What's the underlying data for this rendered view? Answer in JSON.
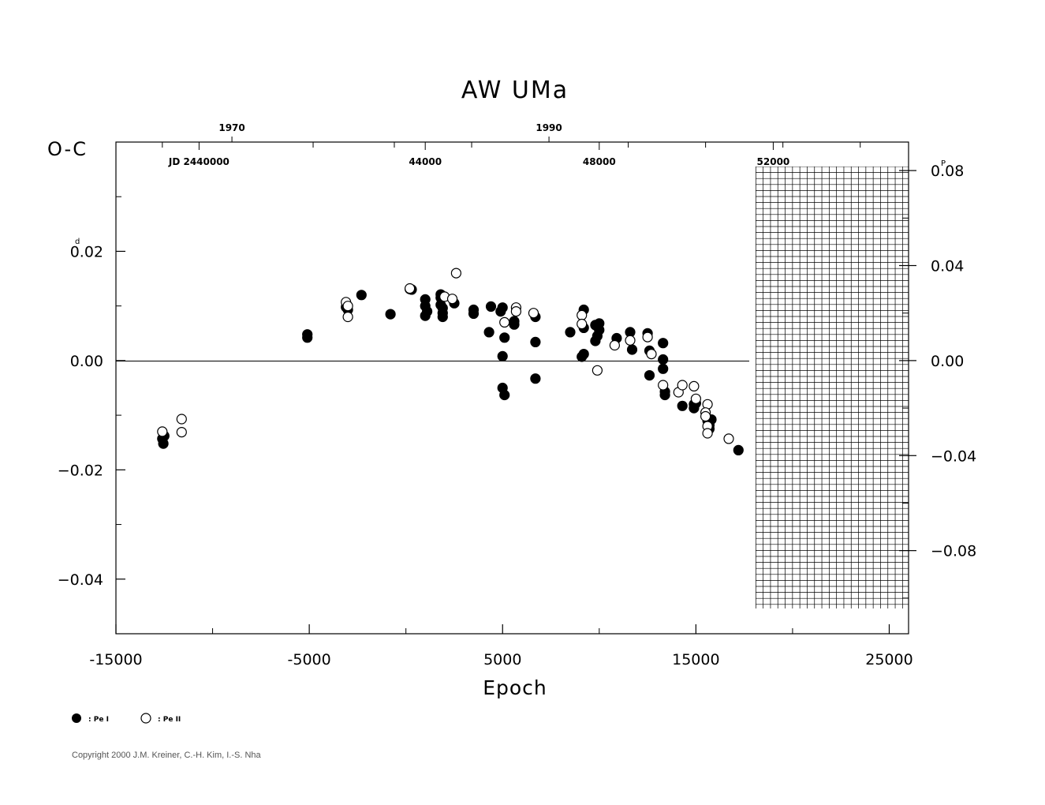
{
  "title": "AW  UMa",
  "copyright": "Copyright 2000 J.M. Kreiner, C.-H. Kim, I.-S. Nha",
  "legend": [
    {
      "marker": "filled-circle",
      "label": ": Pe I"
    },
    {
      "marker": "open-circle",
      "label": ": Pe II"
    }
  ],
  "chart_data": {
    "type": "scatter",
    "title": "AW  UMa",
    "xlabel": "Epoch",
    "ylabel": "O-C",
    "ylabel_unit": "d",
    "y2label_unit": "P",
    "xlim": [
      -15000,
      26000
    ],
    "ylim": [
      -0.05,
      0.04
    ],
    "y2lim": [
      -0.115,
      0.092
    ],
    "x_ticks": [
      "-15000",
      "-5000",
      "5000",
      "15000",
      "25000"
    ],
    "x_tick_values": [
      -15000,
      -5000,
      5000,
      15000,
      25000
    ],
    "y_ticks": [
      {
        "value": 0.02,
        "label": "0.02"
      },
      {
        "value": 0.0,
        "label": "0.00"
      },
      {
        "value": -0.02,
        "label": "−0.02"
      },
      {
        "value": -0.04,
        "label": "−0.04"
      }
    ],
    "y2_ticks": [
      {
        "value": 0.08,
        "label": "0.08"
      },
      {
        "value": 0.04,
        "label": "0.04"
      },
      {
        "value": 0.0,
        "label": "0.00"
      },
      {
        "value": -0.04,
        "label": "−0.04"
      },
      {
        "value": -0.08,
        "label": "−0.08"
      }
    ],
    "top_year_ticks": [
      {
        "epoch": -9000,
        "label": "1970"
      },
      {
        "epoch": 7400,
        "label": "1990"
      }
    ],
    "top_jd_ticks": [
      {
        "epoch": -10700,
        "label": "JD  2440000"
      },
      {
        "epoch": 1000,
        "label": "44000"
      },
      {
        "epoch": 10000,
        "label": "48000"
      },
      {
        "epoch": 19000,
        "label": "52000"
      }
    ],
    "hatched_region_epoch": [
      18100,
      26000
    ],
    "series": [
      {
        "name": "Pe I",
        "marker": "filled",
        "points": [
          [
            -12600,
            -0.0143
          ],
          [
            -12550,
            -0.0152
          ],
          [
            -12500,
            -0.0138
          ],
          [
            -5100,
            0.0042
          ],
          [
            -5100,
            0.0048
          ],
          [
            -3100,
            0.0098
          ],
          [
            -3000,
            0.0093
          ],
          [
            -2300,
            0.012
          ],
          [
            -800,
            0.0085
          ],
          [
            200,
            0.0131
          ],
          [
            300,
            0.013
          ],
          [
            1000,
            0.0112
          ],
          [
            1000,
            0.01
          ],
          [
            1000,
            0.0082
          ],
          [
            1100,
            0.009
          ],
          [
            1800,
            0.0121
          ],
          [
            1800,
            0.0115
          ],
          [
            1800,
            0.0102
          ],
          [
            1900,
            0.0087
          ],
          [
            1900,
            0.008
          ],
          [
            1900,
            0.0096
          ],
          [
            2500,
            0.0105
          ],
          [
            3500,
            0.0093
          ],
          [
            3500,
            0.0086
          ],
          [
            4300,
            0.0052
          ],
          [
            4400,
            0.0099
          ],
          [
            4900,
            0.009
          ],
          [
            5000,
            0.0097
          ],
          [
            5000,
            0.0008
          ],
          [
            5100,
            0.0042
          ],
          [
            5000,
            -0.005
          ],
          [
            5100,
            -0.0063
          ],
          [
            5600,
            0.0072
          ],
          [
            5600,
            0.0066
          ],
          [
            6700,
            0.008
          ],
          [
            6700,
            0.0034
          ],
          [
            6700,
            -0.0033
          ],
          [
            8500,
            0.0052
          ],
          [
            9200,
            0.0093
          ],
          [
            9200,
            0.006
          ],
          [
            9200,
            0.0012
          ],
          [
            9100,
            0.0007
          ],
          [
            9800,
            0.0065
          ],
          [
            9800,
            0.0036
          ],
          [
            9900,
            0.0045
          ],
          [
            10000,
            0.0068
          ],
          [
            10000,
            0.0056
          ],
          [
            10900,
            0.0041
          ],
          [
            11600,
            0.0052
          ],
          [
            11700,
            0.002
          ],
          [
            12500,
            0.005
          ],
          [
            12600,
            0.0018
          ],
          [
            12600,
            -0.0027
          ],
          [
            13300,
            0.0032
          ],
          [
            13300,
            0.0002
          ],
          [
            13300,
            -0.0015
          ],
          [
            13400,
            -0.0057
          ],
          [
            13400,
            -0.0063
          ],
          [
            14300,
            -0.0083
          ],
          [
            14900,
            -0.0087
          ],
          [
            14900,
            -0.008
          ],
          [
            15000,
            -0.0078
          ],
          [
            15600,
            -0.011
          ],
          [
            15700,
            -0.0118
          ],
          [
            15700,
            -0.0125
          ],
          [
            15800,
            -0.0108
          ],
          [
            17200,
            -0.0164
          ]
        ]
      },
      {
        "name": "Pe II",
        "marker": "open",
        "points": [
          [
            -12600,
            -0.013
          ],
          [
            -11600,
            -0.0107
          ],
          [
            -11600,
            -0.0131
          ],
          [
            -3100,
            0.0107
          ],
          [
            -3000,
            0.01
          ],
          [
            -3000,
            0.008
          ],
          [
            200,
            0.0132
          ],
          [
            2000,
            0.0117
          ],
          [
            2400,
            0.0113
          ],
          [
            2600,
            0.016
          ],
          [
            5100,
            0.007
          ],
          [
            5700,
            0.0097
          ],
          [
            5700,
            0.009
          ],
          [
            6600,
            0.0087
          ],
          [
            9100,
            0.0083
          ],
          [
            9100,
            0.0067
          ],
          [
            9900,
            -0.0018
          ],
          [
            10800,
            0.0028
          ],
          [
            11600,
            0.0037
          ],
          [
            12500,
            0.0043
          ],
          [
            12700,
            0.0012
          ],
          [
            13300,
            -0.0045
          ],
          [
            14100,
            -0.0058
          ],
          [
            14300,
            -0.0045
          ],
          [
            14900,
            -0.0047
          ],
          [
            15000,
            -0.007
          ],
          [
            15600,
            -0.008
          ],
          [
            15500,
            -0.0095
          ],
          [
            15500,
            -0.0102
          ],
          [
            15600,
            -0.012
          ],
          [
            15600,
            -0.0133
          ],
          [
            16700,
            -0.0143
          ]
        ]
      }
    ]
  }
}
